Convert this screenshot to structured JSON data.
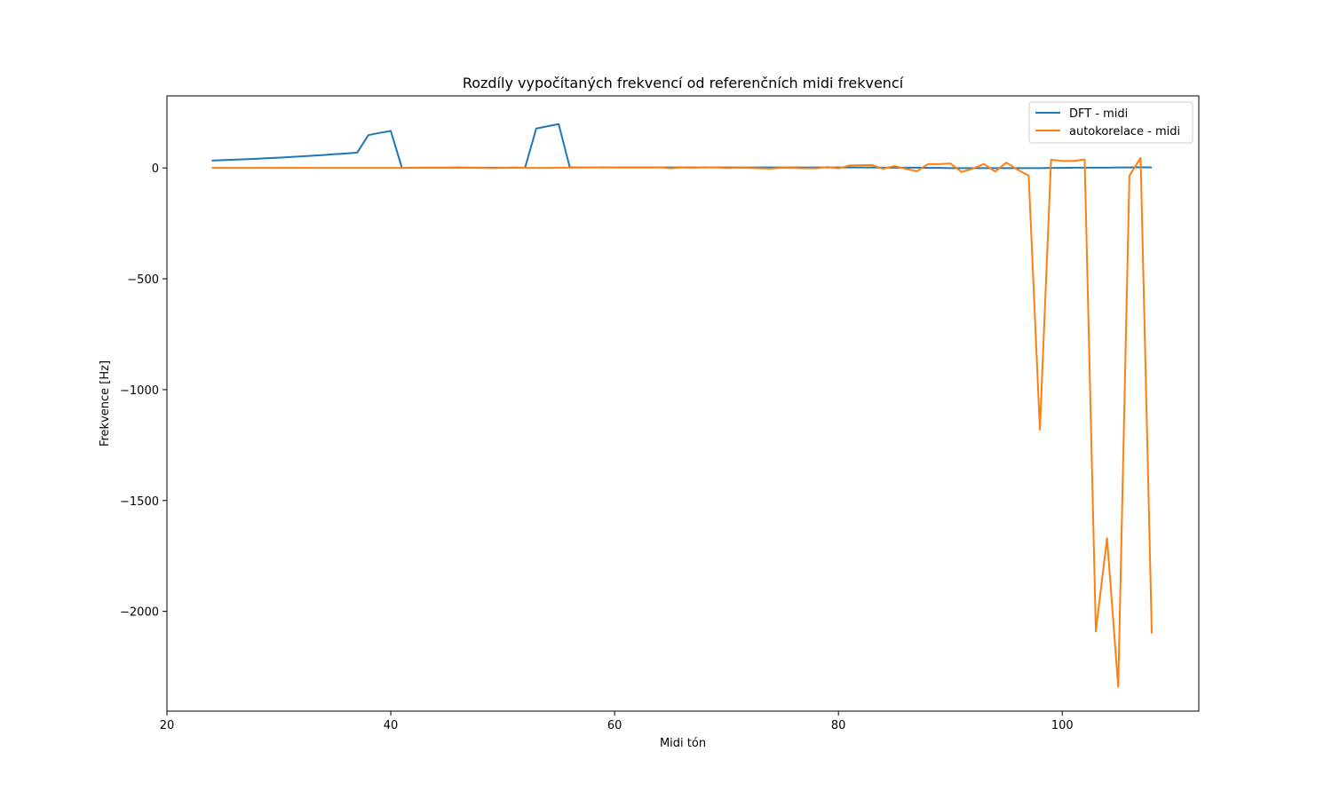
{
  "chart_data": {
    "type": "line",
    "title": "Rozdíly vypočítaných frekvencí od referenčních midi frekvencí",
    "xlabel": "Midi tón",
    "ylabel": "Frekvence [Hz]",
    "xlim": [
      20,
      112.2
    ],
    "ylim": [
      -2450,
      325
    ],
    "x_ticks": [
      20,
      40,
      60,
      80,
      100
    ],
    "y_ticks": [
      0,
      -500,
      -1000,
      -1500,
      -2000
    ],
    "x_tick_labels": [
      "20",
      "40",
      "60",
      "80",
      "100"
    ],
    "y_tick_labels": [
      "0",
      "−500",
      "−1000",
      "−1500",
      "−2000"
    ],
    "legend": "top-right",
    "grid": false,
    "x": [
      24,
      25,
      26,
      27,
      28,
      29,
      30,
      31,
      32,
      33,
      34,
      35,
      36,
      37,
      38,
      39,
      40,
      41,
      42,
      43,
      44,
      45,
      46,
      47,
      48,
      49,
      50,
      51,
      52,
      53,
      54,
      55,
      56,
      57,
      58,
      59,
      60,
      61,
      62,
      63,
      64,
      65,
      66,
      67,
      68,
      69,
      70,
      71,
      72,
      73,
      74,
      75,
      76,
      77,
      78,
      79,
      80,
      81,
      82,
      83,
      84,
      85,
      86,
      87,
      88,
      89,
      90,
      91,
      92,
      93,
      94,
      95,
      96,
      97,
      98,
      99,
      100,
      101,
      102,
      103,
      104,
      105,
      106,
      107,
      108
    ],
    "series": [
      {
        "name": "DFT - midi",
        "color": "#1f77b4",
        "values": [
          33,
          35,
          37,
          39,
          41,
          44,
          46,
          49,
          52,
          55,
          58,
          62,
          65,
          69,
          148,
          158,
          167,
          0,
          1,
          1,
          1,
          1,
          1,
          1,
          1,
          1,
          1,
          1,
          1,
          178,
          188,
          198,
          2,
          2,
          2,
          2,
          2,
          2,
          2,
          2,
          2,
          2,
          2,
          2,
          2,
          2,
          2,
          2,
          2,
          2,
          2,
          2,
          2,
          2,
          2,
          2,
          2,
          2,
          2,
          2,
          1,
          1,
          1,
          1,
          0,
          0,
          -1,
          -1,
          -1,
          -1,
          -1,
          -1,
          -1,
          -1,
          -1,
          0,
          0,
          1,
          1,
          1,
          1,
          2,
          2,
          3,
          2
        ]
      },
      {
        "name": "autokorelace - midi",
        "color": "#ff7f0e",
        "values": [
          0,
          0,
          0,
          0,
          0,
          0,
          0,
          0,
          0,
          0,
          0,
          0,
          0,
          0,
          0,
          0,
          0,
          0,
          0,
          1,
          1,
          1,
          3,
          1,
          0,
          -1,
          0,
          2,
          0,
          0,
          0,
          1,
          1,
          2,
          2,
          3,
          2,
          1,
          2,
          1,
          3,
          -2,
          2,
          0,
          3,
          2,
          -1,
          1,
          0,
          -2,
          -3,
          1,
          0,
          -2,
          -2,
          4,
          -2,
          11,
          12,
          13,
          -4,
          8,
          -4,
          -15,
          17,
          17,
          20,
          -18,
          -3,
          18,
          -16,
          24,
          -8,
          -35,
          -1180,
          37,
          31,
          31,
          38,
          -2090,
          -1670,
          -2340,
          -35,
          45,
          -2100
        ]
      }
    ]
  }
}
